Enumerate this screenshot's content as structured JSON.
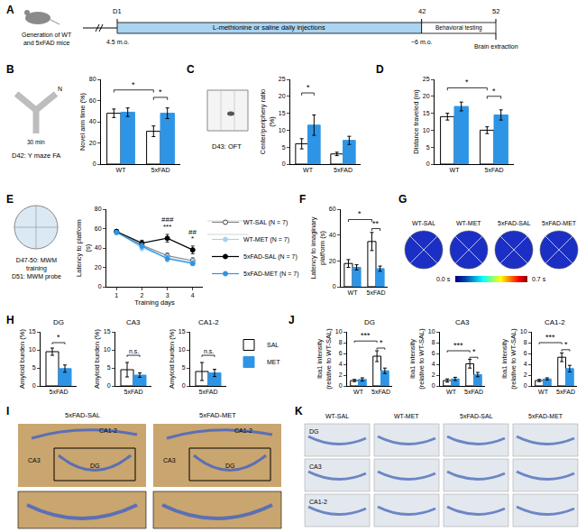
{
  "chart_data": [
    {
      "panel": "B",
      "type": "bar",
      "caption": "D42: Y maze FA",
      "icon_texts": [
        "N",
        "30 min"
      ],
      "ylabel": "Novel arm time (%)",
      "categories": [
        "WT",
        "5xFAD"
      ],
      "ylim": [
        0,
        80
      ],
      "yticks": [
        0,
        20,
        40,
        60,
        80
      ],
      "grid": false,
      "series": [
        {
          "name": "SAL",
          "color": "#ffffff",
          "values": [
            48,
            31
          ],
          "errors": [
            4,
            5
          ]
        },
        {
          "name": "MET",
          "color": "#2e95e6",
          "values": [
            49,
            48
          ],
          "errors": [
            4,
            5
          ]
        }
      ],
      "annotations": [
        {
          "text": "*",
          "from": [
            0,
            0
          ],
          "to": [
            1,
            0
          ],
          "y": 70
        },
        {
          "text": "*",
          "from": [
            1,
            0
          ],
          "to": [
            1,
            1
          ],
          "y": 63
        }
      ]
    },
    {
      "panel": "C",
      "type": "bar",
      "caption": "D43: OFT",
      "ylabel": "Center/periphery ratio (%)",
      "categories": [
        "WT",
        "5xFAD"
      ],
      "ylim": [
        0,
        25
      ],
      "yticks": [
        0,
        5,
        10,
        15,
        20,
        25
      ],
      "grid": false,
      "series": [
        {
          "name": "SAL",
          "color": "#ffffff",
          "values": [
            6,
            3
          ],
          "errors": [
            1.5,
            0.5
          ]
        },
        {
          "name": "MET",
          "color": "#2e95e6",
          "values": [
            11.5,
            7
          ],
          "errors": [
            3,
            1.2
          ]
        }
      ],
      "annotations": [
        {
          "text": "*",
          "from": [
            0,
            0
          ],
          "to": [
            0,
            1
          ],
          "y": 21
        }
      ]
    },
    {
      "panel": "D",
      "type": "bar",
      "ylabel": "Distance traveled (m)",
      "categories": [
        "WT",
        "5xFAD"
      ],
      "ylim": [
        0,
        25
      ],
      "yticks": [
        0,
        5,
        10,
        15,
        20,
        25
      ],
      "grid": false,
      "series": [
        {
          "name": "SAL",
          "color": "#ffffff",
          "values": [
            14,
            10
          ],
          "errors": [
            1,
            1
          ]
        },
        {
          "name": "MET",
          "color": "#2e95e6",
          "values": [
            17,
            14.5
          ],
          "errors": [
            1.3,
            1.5
          ]
        }
      ],
      "annotations": [
        {
          "text": "*",
          "from": [
            0,
            0
          ],
          "to": [
            1,
            0
          ],
          "y": 22.5
        },
        {
          "text": "*",
          "from": [
            1,
            0
          ],
          "to": [
            1,
            1
          ],
          "y": 20
        }
      ]
    },
    {
      "panel": "E",
      "type": "line",
      "caption": [
        "D47-50: MWM training",
        "D51: MWM probe"
      ],
      "ylabel": "Latency to platform (s)",
      "xlabel": "Training days",
      "x": [
        1,
        2,
        3,
        4
      ],
      "xlim": [
        0.6,
        4.4
      ],
      "xticks": [
        1,
        2,
        3,
        4
      ],
      "ylim": [
        0,
        80
      ],
      "yticks": [
        0,
        20,
        40,
        60,
        80
      ],
      "grid": false,
      "legend": "right",
      "series": [
        {
          "name": "WT-SAL (N = 7)",
          "color": "#ffffff",
          "marker": "circle",
          "line_style": "solid",
          "values": [
            57,
            43,
            32,
            27
          ],
          "errors": [
            2,
            3,
            3,
            3
          ]
        },
        {
          "name": "WT-MET (N = 7)",
          "color": "#a6d2f4",
          "marker": "circle",
          "line_style": "solid",
          "values": [
            57,
            40,
            30,
            25
          ],
          "errors": [
            2,
            3,
            3,
            3
          ]
        },
        {
          "name": "5xFAD-SAL (N = 7)",
          "color": "#000000",
          "marker": "circle",
          "line_style": "solid",
          "values": [
            57,
            45,
            50,
            38
          ],
          "errors": [
            2,
            3,
            4,
            4
          ]
        },
        {
          "name": "5xFAD-MET (N = 7)",
          "color": "#2e95e6",
          "marker": "circle",
          "line_style": "solid",
          "values": [
            56,
            42,
            29,
            24
          ],
          "errors": [
            2,
            3,
            3,
            2
          ]
        }
      ],
      "annotations": [
        {
          "text": "***",
          "x": 3,
          "y": 56
        },
        {
          "text": "###",
          "x": 3,
          "y": 63
        },
        {
          "text": "*",
          "x": 4,
          "y": 44
        },
        {
          "text": "##",
          "x": 4,
          "y": 50
        }
      ]
    },
    {
      "panel": "F",
      "type": "bar",
      "ylabel": "Latency to imaginary platform (s)",
      "categories": [
        "WT",
        "5xFAD"
      ],
      "ylim": [
        0,
        60
      ],
      "yticks": [
        0,
        20,
        40,
        60
      ],
      "grid": false,
      "series": [
        {
          "name": "SAL",
          "color": "#ffffff",
          "values": [
            18,
            35
          ],
          "errors": [
            3,
            7
          ]
        },
        {
          "name": "MET",
          "color": "#2e95e6",
          "values": [
            15,
            14
          ],
          "errors": [
            2,
            2
          ]
        }
      ],
      "annotations": [
        {
          "text": "*",
          "from": [
            0,
            0
          ],
          "to": [
            1,
            0
          ],
          "y": 52
        },
        {
          "text": "**",
          "from": [
            1,
            0
          ],
          "to": [
            1,
            1
          ],
          "y": 45
        }
      ]
    },
    {
      "panel": "H",
      "type": "bar",
      "subtitle": "DG",
      "ylabel": "Amyloid burden (%)",
      "categories": [
        "5xFAD"
      ],
      "ylim": [
        0,
        15
      ],
      "yticks": [
        0,
        5,
        10,
        15
      ],
      "grid": false,
      "series": [
        {
          "name": "SAL",
          "color": "#ffffff",
          "values": [
            9.5
          ],
          "errors": [
            1
          ]
        },
        {
          "name": "MET",
          "color": "#2e95e6",
          "values": [
            4.8
          ],
          "errors": [
            1
          ]
        }
      ],
      "annotations": [
        {
          "text": "*",
          "from": [
            0,
            0
          ],
          "to": [
            0,
            1
          ],
          "y": 12
        }
      ]
    },
    {
      "panel": "H",
      "type": "bar",
      "subtitle": "CA3",
      "ylabel": "Amyloid burden (%)",
      "categories": [
        "5xFAD"
      ],
      "ylim": [
        0,
        15
      ],
      "yticks": [
        0,
        5,
        10,
        15
      ],
      "grid": false,
      "series": [
        {
          "name": "SAL",
          "color": "#ffffff",
          "values": [
            4.5
          ],
          "errors": [
            2
          ]
        },
        {
          "name": "MET",
          "color": "#2e95e6",
          "values": [
            3
          ],
          "errors": [
            0.6
          ]
        }
      ],
      "annotations": [
        {
          "text": "n.s.",
          "from": [
            0,
            0
          ],
          "to": [
            0,
            1
          ],
          "y": 8.5
        }
      ]
    },
    {
      "panel": "H",
      "type": "bar",
      "subtitle": "CA1-2",
      "ylabel": "Amyloid burden (%)",
      "legend": "right",
      "categories": [
        "5xFAD"
      ],
      "ylim": [
        0,
        15
      ],
      "yticks": [
        0,
        5,
        10,
        15
      ],
      "grid": false,
      "series": [
        {
          "name": "SAL",
          "color": "#ffffff",
          "values": [
            4
          ],
          "errors": [
            2.5
          ]
        },
        {
          "name": "MET",
          "color": "#2e95e6",
          "values": [
            3.6
          ],
          "errors": [
            1
          ]
        }
      ],
      "annotations": [
        {
          "text": "n.s.",
          "from": [
            0,
            0
          ],
          "to": [
            0,
            1
          ],
          "y": 8.5
        }
      ]
    },
    {
      "panel": "J",
      "type": "bar",
      "subtitle": "DG",
      "ylabel": "Iba1 intensity (relative to WT-SAL)",
      "categories": [
        "WT",
        "5xFAD"
      ],
      "ylim": [
        0,
        10
      ],
      "yticks": [
        0,
        2,
        4,
        6,
        8,
        10
      ],
      "grid": false,
      "series": [
        {
          "name": "SAL",
          "color": "#ffffff",
          "values": [
            1,
            5.5
          ],
          "errors": [
            0.2,
            1
          ]
        },
        {
          "name": "MET",
          "color": "#2e95e6",
          "values": [
            1.2,
            2.8
          ],
          "errors": [
            0.3,
            0.5
          ]
        }
      ],
      "annotations": [
        {
          "text": "***",
          "from": [
            0,
            0
          ],
          "to": [
            1,
            0
          ],
          "y": 8.3
        },
        {
          "text": "*",
          "from": [
            1,
            0
          ],
          "to": [
            1,
            1
          ],
          "y": 7
        }
      ]
    },
    {
      "panel": "J",
      "type": "bar",
      "subtitle": "CA3",
      "ylabel": "Iba1 intensity (relative to WT-SAL)",
      "categories": [
        "WT",
        "5xFAD"
      ],
      "ylim": [
        0,
        10
      ],
      "yticks": [
        0,
        2,
        4,
        6,
        8,
        10
      ],
      "grid": false,
      "series": [
        {
          "name": "SAL",
          "color": "#ffffff",
          "values": [
            1,
            4.1
          ],
          "errors": [
            0.3,
            0.8
          ]
        },
        {
          "name": "MET",
          "color": "#2e95e6",
          "values": [
            1.3,
            2.1
          ],
          "errors": [
            0.3,
            0.4
          ]
        }
      ],
      "annotations": [
        {
          "text": "***",
          "from": [
            0,
            0
          ],
          "to": [
            1,
            0
          ],
          "y": 6.5
        },
        {
          "text": "*",
          "from": [
            1,
            0
          ],
          "to": [
            1,
            1
          ],
          "y": 5.3
        }
      ]
    },
    {
      "panel": "J",
      "type": "bar",
      "subtitle": "CA1-2",
      "ylabel": "Iba1 intensity (relative to WT-SAL)",
      "categories": [
        "WT",
        "5xFAD"
      ],
      "ylim": [
        0,
        10
      ],
      "yticks": [
        0,
        2,
        4,
        6,
        8,
        10
      ],
      "grid": false,
      "series": [
        {
          "name": "SAL",
          "color": "#ffffff",
          "values": [
            1,
            5.3
          ],
          "errors": [
            0.2,
            0.8
          ]
        },
        {
          "name": "MET",
          "color": "#2e95e6",
          "values": [
            1.3,
            3.2
          ],
          "errors": [
            0.2,
            0.6
          ]
        }
      ],
      "annotations": [
        {
          "text": "***",
          "from": [
            0,
            0
          ],
          "to": [
            1,
            0
          ],
          "y": 8
        },
        {
          "text": "*",
          "from": [
            1,
            0
          ],
          "to": [
            1,
            1
          ],
          "y": 6.7
        }
      ]
    }
  ],
  "timeline": {
    "panel": "A",
    "icon_label": "Generation of WT and 5xFAD mice",
    "day_ticks": [
      {
        "value": 1,
        "label": "D1"
      },
      42,
      52
    ],
    "phases": [
      {
        "label": "L-methionine or saline daily injections",
        "from": 1,
        "to": 42,
        "color": "#a9d4f2"
      },
      {
        "label": "Behavioral testing",
        "from": 42,
        "to": 52,
        "color": "#ffffff"
      }
    ],
    "ages": [
      {
        "day": 1,
        "label": "4.5 m.o."
      },
      {
        "day": 42,
        "label": "~6 m.o."
      }
    ],
    "end": {
      "day": 52,
      "label": "Brain extraction"
    }
  },
  "heatmaps": {
    "panel": "G",
    "labels": [
      "WT-SAL",
      "WT-MET",
      "5xFAD-SAL",
      "5xFAD-MET"
    ],
    "colorbar_range": [
      0,
      0.7
    ],
    "colorbar_ticks": [
      {
        "value": 0,
        "label": "0.0 s"
      },
      {
        "value": 0.7,
        "label": "0.7 s"
      }
    ]
  },
  "image_panels": [
    {
      "panel": "I",
      "columns": [
        "5xFAD-SAL",
        "5xFAD-MET"
      ],
      "regions": [
        "CA1-2",
        "CA3",
        "DG"
      ]
    },
    {
      "panel": "K",
      "columns": [
        "WT-SAL",
        "WT-MET",
        "5xFAD-SAL",
        "5xFAD-MET"
      ],
      "rows": [
        "DG",
        "CA3",
        "CA1-2"
      ]
    }
  ]
}
